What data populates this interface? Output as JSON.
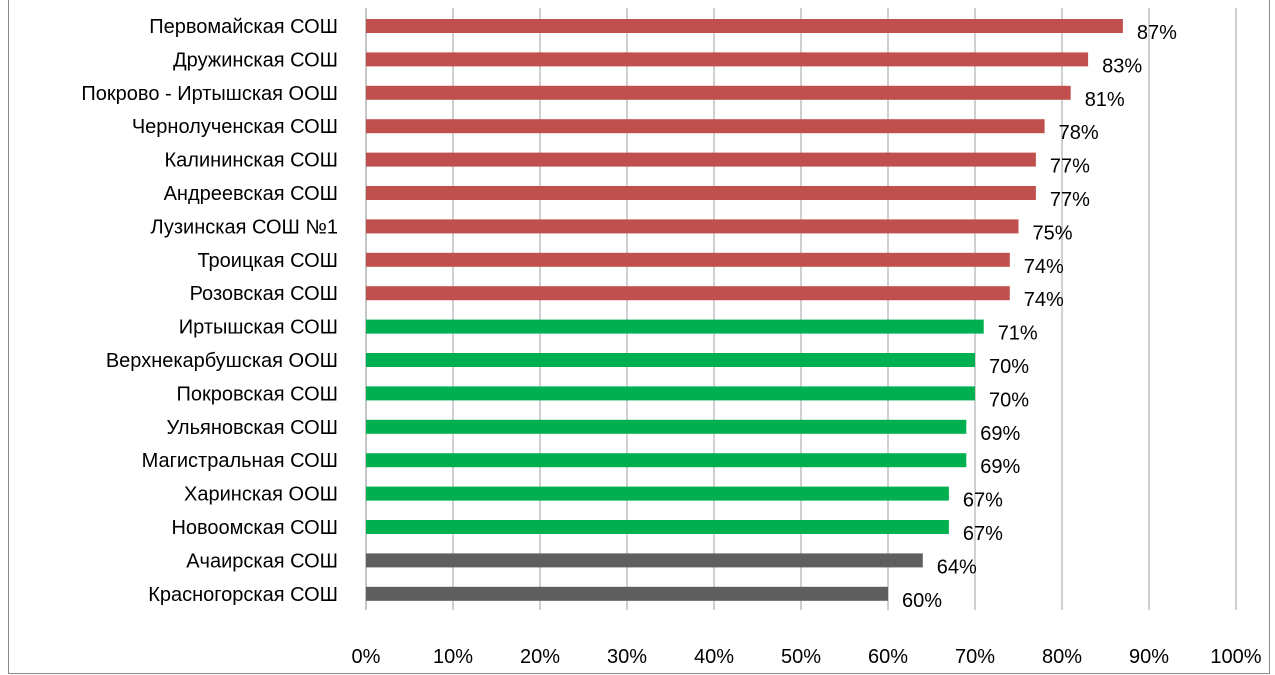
{
  "chart_data": {
    "type": "bar",
    "orientation": "horizontal",
    "categories": [
      "Первомайская СОШ",
      "Дружинская СОШ",
      "Покрово - Иртышская ООШ",
      "Чернолученская СОШ",
      "Калининская СОШ",
      "Андреевская СОШ",
      "Лузинская СОШ №1",
      "Троицкая СОШ",
      "Розовская СОШ",
      "Иртышская СОШ",
      "Верхнекарбушская ООШ",
      "Покровская СОШ",
      "Ульяновская СОШ",
      "Магистральная СОШ",
      "Харинская ООШ",
      "Новоомская СОШ",
      "Ачаирская СОШ",
      "Красногорская СОШ"
    ],
    "values": [
      87,
      83,
      81,
      78,
      77,
      77,
      75,
      74,
      74,
      71,
      70,
      70,
      69,
      69,
      67,
      67,
      64,
      60
    ],
    "value_labels": [
      "87%",
      "83%",
      "81%",
      "78%",
      "77%",
      "77%",
      "75%",
      "74%",
      "74%",
      "71%",
      "70%",
      "70%",
      "69%",
      "69%",
      "67%",
      "67%",
      "64%",
      "60%"
    ],
    "bar_colors": [
      "#c0504d",
      "#c0504d",
      "#c0504d",
      "#c0504d",
      "#c0504d",
      "#c0504d",
      "#c0504d",
      "#c0504d",
      "#c0504d",
      "#00b050",
      "#00b050",
      "#00b050",
      "#00b050",
      "#00b050",
      "#00b050",
      "#00b050",
      "#5f5f5f",
      "#5f5f5f"
    ],
    "xlim": [
      0,
      100
    ],
    "x_ticks": [
      0,
      10,
      20,
      30,
      40,
      50,
      60,
      70,
      80,
      90,
      100
    ],
    "x_tick_labels": [
      "0%",
      "10%",
      "20%",
      "30%",
      "40%",
      "50%",
      "60%",
      "70%",
      "80%",
      "90%",
      "100%"
    ],
    "grid": "vertical",
    "gridline_color": "#a0a0a0",
    "title": "",
    "xlabel": "",
    "ylabel": ""
  }
}
